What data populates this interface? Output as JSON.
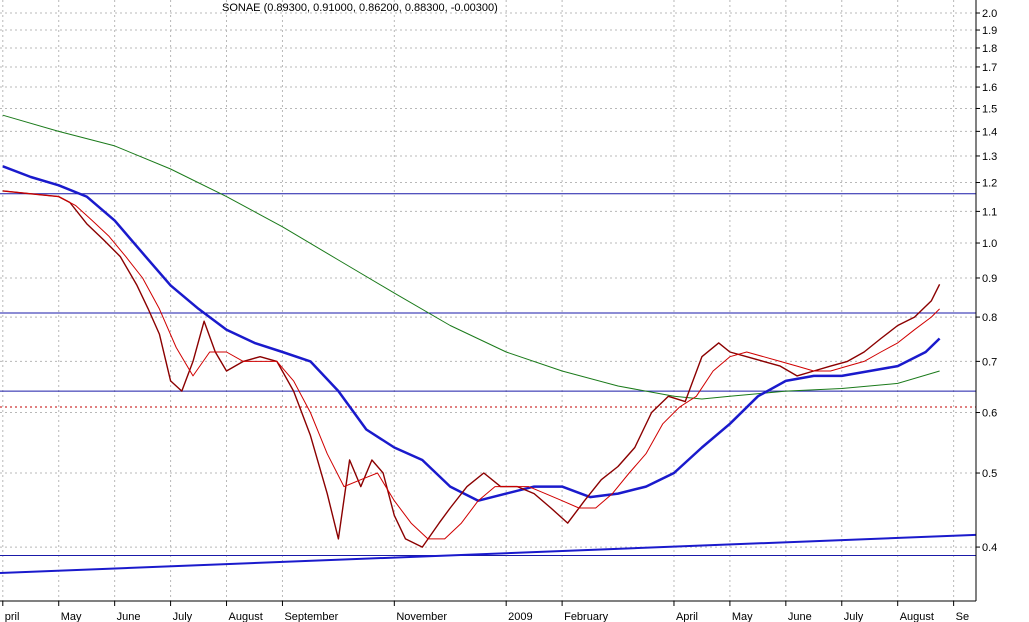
{
  "chart_data": {
    "type": "line",
    "title": "SONAE (0.89300, 0.91000, 0.86200, 0.88300, -0.00300)",
    "y_scale": "log",
    "ylim": [
      0.34,
      2.08
    ],
    "grid": true,
    "y_ticks": [
      0.4,
      0.5,
      0.6,
      0.7,
      0.8,
      0.9,
      1.0,
      1.1,
      1.2,
      1.3,
      1.4,
      1.5,
      1.6,
      1.7,
      1.8,
      1.9,
      2.0
    ],
    "y_tick_labels": [
      "0.4",
      "0.5",
      "0.6",
      "0.7",
      "0.8",
      "0.9",
      "1.0",
      "1.1",
      "1.2",
      "1.3",
      "1.4",
      "1.5",
      "1.6",
      "1.7",
      "1.8",
      "1.9",
      "2.0"
    ],
    "x_labels": [
      "pril",
      "May",
      "June",
      "July",
      "August",
      "September",
      "November",
      "2009",
      "February",
      "April",
      "May",
      "June",
      "July",
      "August",
      "Se"
    ],
    "x_label_months": [
      0,
      1,
      2,
      3,
      4,
      5,
      7,
      9,
      10,
      12,
      13,
      14,
      15,
      16,
      17
    ],
    "x_range_months": [
      -0.05,
      17.4
    ],
    "horizontal_lines": [
      {
        "y": 1.16,
        "style": "solid",
        "color": "#1a1aa8"
      },
      {
        "y": 0.81,
        "style": "solid",
        "color": "#1a1aa8"
      },
      {
        "y": 0.64,
        "style": "solid",
        "color": "#1a1aa8"
      },
      {
        "y": 0.61,
        "style": "dotted",
        "color": "#c00000"
      },
      {
        "y": 0.39,
        "style": "solid",
        "color": "#1a1aa8"
      }
    ],
    "trendline": {
      "from": [
        -0.05,
        0.37
      ],
      "to": [
        17.4,
        0.415
      ],
      "color": "#1a1acc"
    },
    "series": [
      {
        "role": "price_close",
        "color": "#8b0000",
        "x_months": [
          0,
          0.5,
          1.0,
          1.2,
          1.5,
          1.8,
          2.1,
          2.4,
          2.6,
          2.8,
          3.0,
          3.2,
          3.4,
          3.6,
          3.8,
          4.0,
          4.3,
          4.6,
          4.9,
          5.2,
          5.5,
          5.8,
          6.0,
          6.2,
          6.4,
          6.6,
          6.8,
          7.0,
          7.2,
          7.5,
          7.8,
          8.0,
          8.3,
          8.6,
          8.9,
          9.2,
          9.5,
          9.8,
          10.1,
          10.4,
          10.7,
          11.0,
          11.3,
          11.6,
          11.9,
          12.2,
          12.5,
          12.8,
          13.0,
          13.3,
          13.6,
          13.9,
          14.2,
          14.5,
          14.8,
          15.1,
          15.4,
          15.7,
          16.0,
          16.3,
          16.6,
          16.75
        ],
        "values": [
          1.17,
          1.16,
          1.15,
          1.13,
          1.06,
          1.01,
          0.96,
          0.88,
          0.82,
          0.76,
          0.66,
          0.64,
          0.7,
          0.79,
          0.72,
          0.68,
          0.7,
          0.71,
          0.7,
          0.64,
          0.56,
          0.47,
          0.41,
          0.52,
          0.48,
          0.52,
          0.5,
          0.44,
          0.41,
          0.4,
          0.43,
          0.45,
          0.48,
          0.5,
          0.48,
          0.48,
          0.47,
          0.45,
          0.43,
          0.46,
          0.49,
          0.51,
          0.54,
          0.6,
          0.63,
          0.62,
          0.71,
          0.74,
          0.72,
          0.71,
          0.7,
          0.69,
          0.67,
          0.68,
          0.69,
          0.7,
          0.72,
          0.75,
          0.78,
          0.8,
          0.84,
          0.883
        ]
      },
      {
        "role": "short_moving_average",
        "color": "#d00000",
        "x_months": [
          0,
          0.5,
          1.0,
          1.3,
          1.6,
          1.9,
          2.2,
          2.5,
          2.8,
          3.1,
          3.4,
          3.7,
          4.0,
          4.3,
          4.6,
          4.9,
          5.2,
          5.5,
          5.8,
          6.1,
          6.4,
          6.7,
          7.0,
          7.3,
          7.6,
          7.9,
          8.2,
          8.5,
          8.8,
          9.1,
          9.4,
          9.7,
          10.0,
          10.3,
          10.6,
          10.9,
          11.2,
          11.5,
          11.8,
          12.1,
          12.4,
          12.7,
          13.0,
          13.3,
          13.6,
          13.9,
          14.2,
          14.5,
          14.8,
          15.1,
          15.4,
          15.7,
          16.0,
          16.3,
          16.6,
          16.75
        ],
        "values": [
          1.17,
          1.16,
          1.15,
          1.12,
          1.07,
          1.02,
          0.96,
          0.9,
          0.82,
          0.73,
          0.67,
          0.72,
          0.72,
          0.7,
          0.7,
          0.7,
          0.66,
          0.6,
          0.53,
          0.48,
          0.49,
          0.5,
          0.46,
          0.43,
          0.41,
          0.41,
          0.43,
          0.46,
          0.48,
          0.48,
          0.48,
          0.47,
          0.46,
          0.45,
          0.45,
          0.47,
          0.5,
          0.53,
          0.58,
          0.61,
          0.63,
          0.68,
          0.71,
          0.72,
          0.71,
          0.7,
          0.69,
          0.68,
          0.68,
          0.69,
          0.7,
          0.72,
          0.74,
          0.77,
          0.8,
          0.82
        ]
      },
      {
        "role": "medium_moving_average",
        "color": "#1a1acc",
        "x_months": [
          0,
          0.5,
          1.0,
          1.5,
          2.0,
          2.5,
          3.0,
          3.5,
          4.0,
          4.5,
          5.0,
          5.5,
          6.0,
          6.5,
          7.0,
          7.5,
          8.0,
          8.5,
          9.0,
          9.5,
          10.0,
          10.5,
          11.0,
          11.5,
          12.0,
          12.5,
          13.0,
          13.5,
          14.0,
          14.5,
          15.0,
          15.5,
          16.0,
          16.5,
          16.75
        ],
        "values": [
          1.26,
          1.22,
          1.19,
          1.15,
          1.07,
          0.97,
          0.88,
          0.82,
          0.77,
          0.74,
          0.72,
          0.7,
          0.64,
          0.57,
          0.54,
          0.52,
          0.48,
          0.46,
          0.47,
          0.48,
          0.48,
          0.465,
          0.47,
          0.48,
          0.5,
          0.54,
          0.58,
          0.63,
          0.66,
          0.67,
          0.67,
          0.68,
          0.69,
          0.72,
          0.75
        ]
      },
      {
        "role": "long_moving_average",
        "color": "#1a7a1a",
        "x_months": [
          0,
          1.0,
          2.0,
          3.0,
          4.0,
          5.0,
          6.0,
          7.0,
          8.0,
          9.0,
          10.0,
          11.0,
          12.0,
          12.5,
          13.0,
          14.0,
          15.0,
          16.0,
          16.75
        ],
        "values": [
          1.47,
          1.4,
          1.34,
          1.25,
          1.15,
          1.05,
          0.95,
          0.86,
          0.78,
          0.72,
          0.68,
          0.65,
          0.63,
          0.625,
          0.63,
          0.64,
          0.645,
          0.655,
          0.68
        ]
      }
    ]
  }
}
